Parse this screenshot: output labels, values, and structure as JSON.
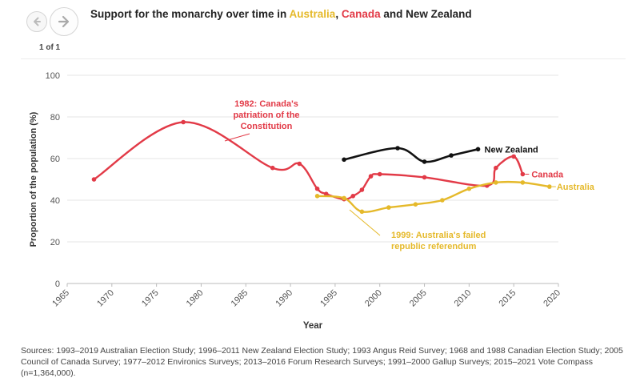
{
  "nav": {
    "counter": "1 of 1",
    "prev_icon": "chevron-left-icon",
    "next_icon": "chevron-right-icon"
  },
  "title": {
    "prefix": "Support for the monarchy over time in ",
    "australia": "Australia",
    "sep": ", ",
    "canada": "Canada",
    "suffix": " and New Zealand"
  },
  "colors": {
    "australia": "#e5b92a",
    "canada": "#e23a47",
    "new_zealand": "#111111",
    "grid": "#e6e6e6"
  },
  "chart_data": {
    "type": "line",
    "xlabel": "Year",
    "ylabel": "Proportion of the population (%)",
    "xlim": [
      1965,
      2020
    ],
    "ylim": [
      0,
      100
    ],
    "xticks": [
      "1965",
      "1970",
      "1975",
      "1980",
      "1985",
      "1990",
      "1995",
      "2000",
      "2005",
      "2010",
      "2015",
      "2020"
    ],
    "yticks": [
      "0",
      "20",
      "40",
      "60",
      "80",
      "100"
    ],
    "series": [
      {
        "name": "Canada",
        "key": "canada",
        "points": [
          [
            1968,
            50
          ],
          [
            1978,
            77.5
          ],
          [
            1988,
            55.5
          ],
          [
            1991,
            57.5
          ],
          [
            1993,
            45.5
          ],
          [
            1994,
            43
          ],
          [
            1996,
            40.5
          ],
          [
            1997,
            42
          ],
          [
            1998,
            45
          ],
          [
            1999,
            51.5
          ],
          [
            2000,
            52.5
          ],
          [
            2005,
            51
          ],
          [
            2012,
            47
          ],
          [
            2013,
            55.5
          ],
          [
            2015,
            61
          ],
          [
            2016,
            52.5
          ]
        ]
      },
      {
        "name": "Australia",
        "key": "australia",
        "points": [
          [
            1993,
            42
          ],
          [
            1996,
            41
          ],
          [
            1998,
            34.5
          ],
          [
            2001,
            36.5
          ],
          [
            2004,
            38
          ],
          [
            2007,
            40
          ],
          [
            2010,
            45.5
          ],
          [
            2013,
            48.5
          ],
          [
            2016,
            48.5
          ],
          [
            2019,
            46.5
          ]
        ]
      },
      {
        "name": "New Zealand",
        "key": "new_zealand",
        "points": [
          [
            1996,
            59.5
          ],
          [
            2002,
            65
          ],
          [
            2005,
            58.5
          ],
          [
            2008,
            61.5
          ],
          [
            2011,
            64.5
          ]
        ]
      }
    ],
    "series_labels": {
      "canada": "Canada",
      "australia": "Australia",
      "new_zealand": "New Zealand"
    },
    "annotations": [
      {
        "key": "canada",
        "year": 1982,
        "lines": [
          "1982: Canada's",
          "patriation of the",
          "Constitution"
        ]
      },
      {
        "key": "australia",
        "year": 1999,
        "lines": [
          "1999: Australia's failed",
          "republic referendum"
        ]
      }
    ]
  },
  "sources": "Sources: 1993–2019 Australian Election Study; 1996–2011 New Zealand Election Study; 1993 Angus Reid Survey; 1968 and 1988 Canadian Election Study; 2005 Council of Canada Survey; 1977–2012 Environics Surveys; 2013–2016 Forum Research Surveys; 1991–2000 Gallup Surveys; 2015–2021 Vote Compass (n=1,364,000)."
}
